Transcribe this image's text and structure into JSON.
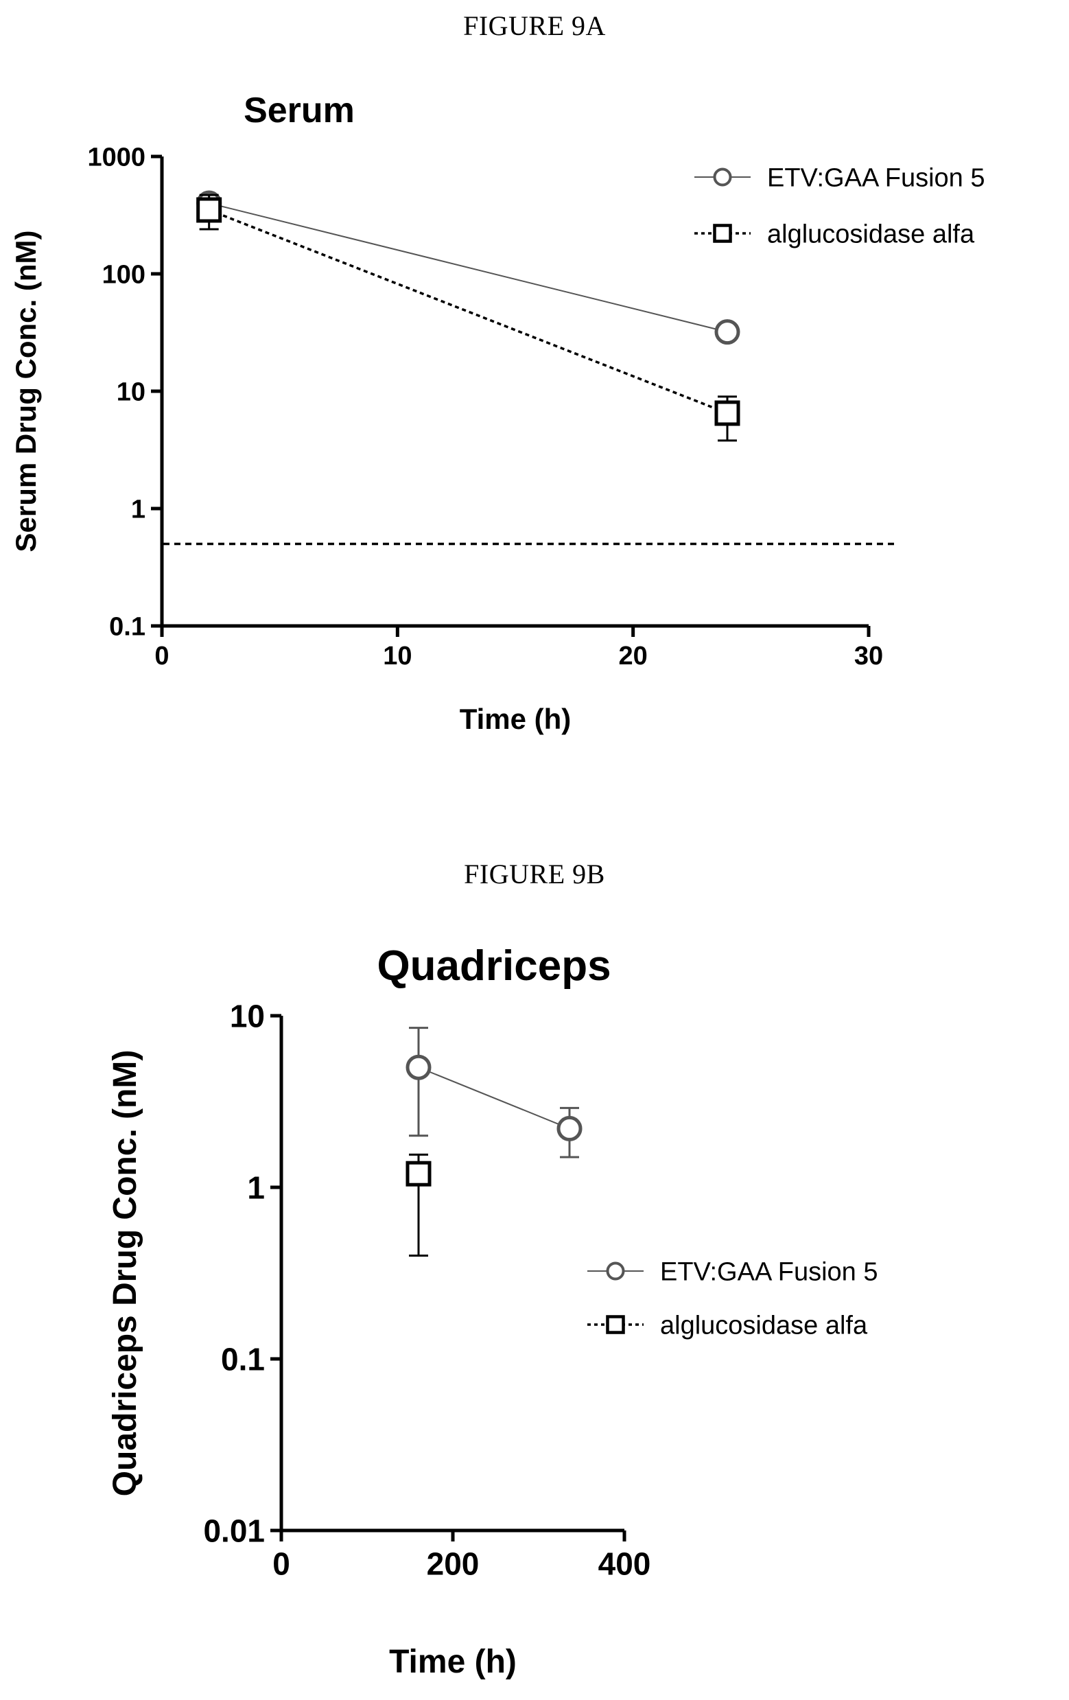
{
  "figures": {
    "a_caption": "FIGURE 9A",
    "b_caption": "FIGURE 9B"
  },
  "chart_data": [
    {
      "type": "line",
      "title": "Serum",
      "xlabel": "Time (h)",
      "ylabel": "Serum Drug Conc. (nM)",
      "xlim": [
        0,
        30
      ],
      "ylim": [
        0.1,
        1000
      ],
      "yscale": "log",
      "xticks": [
        "0",
        "10",
        "20",
        "30"
      ],
      "yticks": [
        "0.1",
        "1",
        "10",
        "100",
        "1000"
      ],
      "grid": false,
      "legend": "top-right",
      "reference_line_y": 0.5,
      "series": [
        {
          "name": "ETV:GAA Fusion 5",
          "marker": "circle",
          "line": "solid",
          "color": "#555555",
          "x": [
            2,
            24
          ],
          "y": [
            400,
            32
          ],
          "err_low": [
            340,
            28
          ],
          "err_high": [
            460,
            36
          ]
        },
        {
          "name": "alglucosidase alfa",
          "marker": "square",
          "line": "dotted",
          "color": "#000000",
          "x": [
            2,
            24
          ],
          "y": [
            350,
            6.5
          ],
          "err_low": [
            240,
            3.8
          ],
          "err_high": [
            470,
            9
          ]
        }
      ]
    },
    {
      "type": "line",
      "title": "Quadriceps",
      "xlabel": "Time (h)",
      "ylabel": "Quadriceps Drug Conc. (nM)",
      "xlim": [
        0,
        400
      ],
      "ylim": [
        0.01,
        10
      ],
      "yscale": "log",
      "xticks": [
        "0",
        "200",
        "400"
      ],
      "yticks": [
        "0.01",
        "0.1",
        "1",
        "10"
      ],
      "grid": false,
      "legend": "center-right",
      "series": [
        {
          "name": "ETV:GAA Fusion 5",
          "marker": "circle",
          "line": "solid",
          "color": "#555555",
          "x": [
            160,
            336
          ],
          "y": [
            5,
            2.2
          ],
          "err_low": [
            2,
            1.5
          ],
          "err_high": [
            8.5,
            2.9
          ]
        },
        {
          "name": "alglucosidase alfa",
          "marker": "square",
          "line": "dotted",
          "color": "#000000",
          "x": [
            160
          ],
          "y": [
            1.2
          ],
          "err_low": [
            0.4
          ],
          "err_high": [
            1.55
          ]
        }
      ]
    }
  ]
}
